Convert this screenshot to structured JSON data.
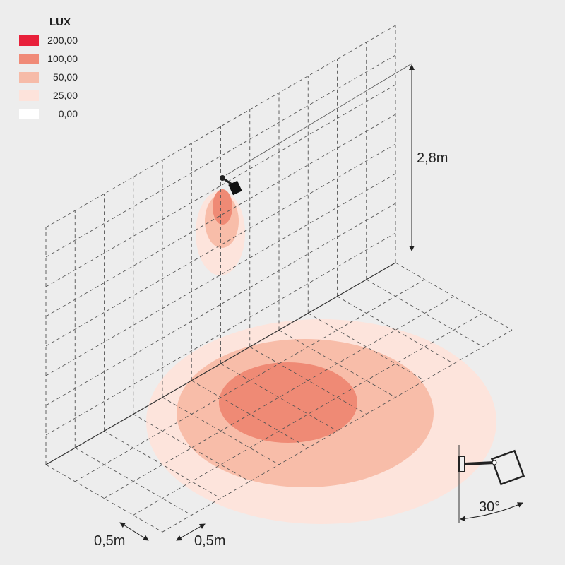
{
  "legend": {
    "title": "LUX",
    "items": [
      {
        "label": "200,00",
        "color": "#e8203a"
      },
      {
        "label": "100,00",
        "color": "#f08a77"
      },
      {
        "label": "50,00",
        "color": "#f6bba8"
      },
      {
        "label": "25,00",
        "color": "#fde3db"
      },
      {
        "label": "0,00",
        "color": "#ffffff"
      }
    ]
  },
  "dimensions": {
    "height": "2,8m",
    "spacing_a": "0,5m",
    "spacing_b": "0,5m",
    "tilt": "30°"
  }
}
